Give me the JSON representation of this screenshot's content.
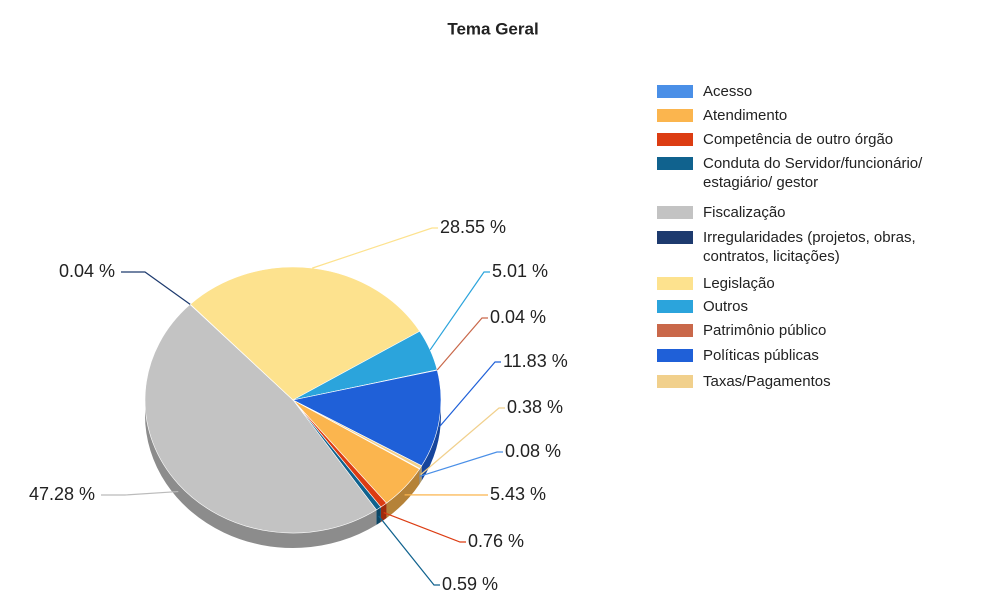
{
  "chart_data": {
    "type": "pie",
    "title": "Tema Geral",
    "categories": [
      "Acesso",
      "Atendimento",
      "Competência de outro órgão",
      "Conduta do Servidor/funcionário/ estagiário/ gestor",
      "Fiscalização",
      "Irregularidades (projetos, obras, contratos, licitações)",
      "Legislação",
      "Outros",
      "Patrimônio público",
      "Políticas públicas",
      "Taxas/Pagamentos"
    ],
    "values": [
      0.08,
      5.43,
      0.76,
      0.59,
      47.28,
      0.04,
      28.55,
      5.01,
      0.04,
      11.83,
      0.38
    ],
    "value_labels": [
      "0.08 %",
      "5.43 %",
      "0.76 %",
      "0.59 %",
      "47.28 %",
      "0.04 %",
      "28.55 %",
      "5.01 %",
      "0.04 %",
      "11.83 %",
      "0.38 %"
    ],
    "colors": [
      "#4a8fe7",
      "#fbb54e",
      "#dc3c12",
      "#10628e",
      "#c3c3c3",
      "#1d3a6e",
      "#fde28e",
      "#2ba4dc",
      "#c9684a",
      "#1f60d8",
      "#f1d08c"
    ],
    "legend": "right"
  }
}
